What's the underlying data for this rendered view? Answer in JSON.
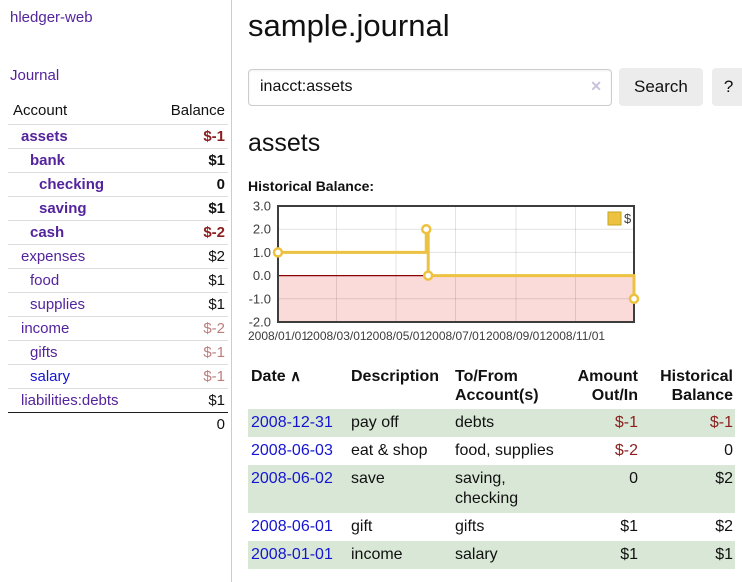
{
  "app": {
    "brand": "hledger-web"
  },
  "sidebar": {
    "journal_link": "Journal",
    "header": {
      "account": "Account",
      "balance": "Balance"
    },
    "accounts": [
      {
        "name": "assets",
        "balance": "$-1"
      },
      {
        "name": "bank",
        "balance": "$1"
      },
      {
        "name": "checking",
        "balance": "0"
      },
      {
        "name": "saving",
        "balance": "$1"
      },
      {
        "name": "cash",
        "balance": "$-2"
      },
      {
        "name": "expenses",
        "balance": "$2"
      },
      {
        "name": "food",
        "balance": "$1"
      },
      {
        "name": "supplies",
        "balance": "$1"
      },
      {
        "name": "income",
        "balance": "$-2"
      },
      {
        "name": "gifts",
        "balance": "$-1"
      },
      {
        "name": "salary",
        "balance": "$-1"
      },
      {
        "name": "liabilities:debts",
        "balance": "$1"
      }
    ],
    "total": "0"
  },
  "main": {
    "title": "sample.journal",
    "search": {
      "value": "inacct:assets",
      "clear_icon": "✕",
      "button_label": "Search",
      "help_label": "?"
    },
    "account_heading": "assets",
    "chart_title": "Historical Balance:"
  },
  "chart_data": {
    "type": "line",
    "step": true,
    "title": "Historical Balance:",
    "series": [
      {
        "name": "$",
        "color": "#edc240",
        "points": [
          [
            "2008-01-01",
            1
          ],
          [
            "2008-06-01",
            2
          ],
          [
            "2008-06-03",
            0
          ],
          [
            "2008-12-31",
            -1
          ]
        ]
      }
    ],
    "x_ticks": [
      [
        "2008-01-01",
        "2008/01/01"
      ],
      [
        "2008-03-01",
        "2008/03/01"
      ],
      [
        "2008-05-01",
        "2008/05/01"
      ],
      [
        "2008-07-01",
        "2008/07/01"
      ],
      [
        "2008-09-01",
        "2008/09/01"
      ],
      [
        "2008-11-01",
        "2008/11/01"
      ]
    ],
    "y_ticks": [
      [
        3,
        "3.0"
      ],
      [
        2,
        "2.0"
      ],
      [
        1,
        "1.0"
      ],
      [
        0,
        "0.0"
      ],
      [
        -1,
        "-1.0"
      ],
      [
        -2,
        "-2.0"
      ]
    ],
    "xlim": [
      "2008-01-01",
      "2008-12-31"
    ],
    "ylim": [
      -2,
      3
    ],
    "grid": true,
    "legend": {
      "label": "$",
      "position": "top-right"
    },
    "negative_region_color": "#fbdada",
    "zero_line_color": "#8b0000",
    "border_color": "#3d3d3d",
    "tick_label_color": "#3c3c3c"
  },
  "register": {
    "headers": {
      "date": "Date",
      "sort_icon": "∧",
      "description": "Description",
      "accounts": "To/From Account(s)",
      "amount": "Amount Out/In",
      "balance": "Historical Balance"
    },
    "rows": [
      {
        "date": "2008-12-31",
        "description": "pay off",
        "accounts": "debts",
        "amount": "$-1",
        "balance": "$-1"
      },
      {
        "date": "2008-06-03",
        "description": "eat & shop",
        "accounts": "food, supplies",
        "amount": "$-2",
        "balance": "0"
      },
      {
        "date": "2008-06-02",
        "description": "save",
        "accounts": "saving, checking",
        "amount": "0",
        "balance": "$2"
      },
      {
        "date": "2008-06-01",
        "description": "gift",
        "accounts": "gifts",
        "amount": "$1",
        "balance": "$2"
      },
      {
        "date": "2008-01-01",
        "description": "income",
        "accounts": "salary",
        "amount": "$1",
        "balance": "$1"
      }
    ]
  }
}
